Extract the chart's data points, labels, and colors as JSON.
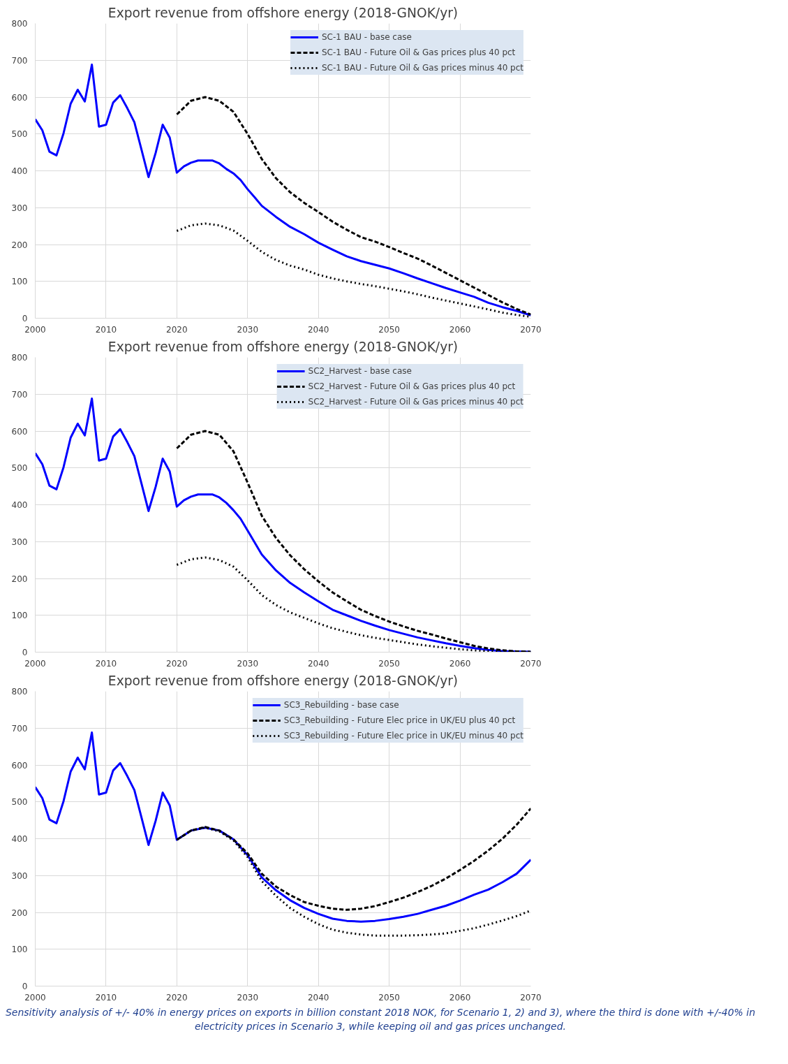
{
  "chart_data": [
    {
      "type": "line",
      "title": "Export revenue from offshore energy (2018-GNOK/yr)",
      "xlim": [
        2000,
        2070
      ],
      "xticks": [
        2000,
        2010,
        2020,
        2030,
        2040,
        2050,
        2060,
        2070
      ],
      "ylim": [
        0,
        800
      ],
      "yticks": [
        0,
        100,
        200,
        300,
        400,
        500,
        600,
        700,
        800
      ],
      "grid": true,
      "legend": "top right",
      "marker": "none",
      "series": [
        {
          "name": "SC-1 BAU - base case",
          "color": "#0000ff",
          "line_style": "solid",
          "x": [
            2000,
            2001,
            2002,
            2003,
            2004,
            2005,
            2006,
            2007,
            2008,
            2009,
            2010,
            2011,
            2012,
            2013,
            2014,
            2015,
            2016,
            2017,
            2018,
            2019,
            2020,
            2021,
            2022,
            2023,
            2024,
            2025,
            2026,
            2027,
            2028,
            2029,
            2030,
            2031,
            2032,
            2034,
            2036,
            2038,
            2040,
            2042,
            2044,
            2046,
            2048,
            2050,
            2052,
            2054,
            2056,
            2058,
            2060,
            2062,
            2064,
            2066,
            2068,
            2070
          ],
          "values": [
            540,
            510,
            452,
            442,
            502,
            582,
            620,
            588,
            688,
            520,
            525,
            585,
            605,
            570,
            532,
            458,
            383,
            448,
            525,
            490,
            395,
            412,
            422,
            428,
            428,
            428,
            420,
            405,
            393,
            375,
            350,
            328,
            305,
            275,
            248,
            228,
            205,
            186,
            168,
            155,
            145,
            135,
            122,
            108,
            95,
            82,
            70,
            58,
            42,
            30,
            20,
            8
          ]
        },
        {
          "name": "SC-1 BAU - Future Oil & Gas prices plus 40 pct",
          "color": "#000000",
          "line_style": "dashed",
          "x": [
            2020,
            2022,
            2024,
            2026,
            2028,
            2030,
            2032,
            2034,
            2036,
            2038,
            2040,
            2042,
            2044,
            2046,
            2048,
            2050,
            2052,
            2054,
            2056,
            2058,
            2060,
            2062,
            2064,
            2066,
            2068,
            2070
          ],
          "values": [
            553,
            590,
            600,
            590,
            560,
            500,
            432,
            380,
            342,
            313,
            288,
            262,
            240,
            220,
            208,
            193,
            177,
            162,
            143,
            123,
            103,
            83,
            63,
            43,
            25,
            10
          ]
        },
        {
          "name": "SC-1 BAU - Future Oil & Gas prices minus 40 pct",
          "color": "#000000",
          "line_style": "dotted",
          "x": [
            2020,
            2022,
            2024,
            2026,
            2028,
            2030,
            2032,
            2034,
            2036,
            2038,
            2040,
            2042,
            2044,
            2046,
            2048,
            2050,
            2052,
            2054,
            2056,
            2058,
            2060,
            2062,
            2064,
            2066,
            2068,
            2070
          ],
          "values": [
            237,
            252,
            257,
            252,
            238,
            210,
            180,
            158,
            143,
            132,
            118,
            108,
            100,
            93,
            87,
            80,
            73,
            65,
            56,
            48,
            40,
            32,
            24,
            15,
            9,
            4
          ]
        }
      ]
    },
    {
      "type": "line",
      "title": "Export revenue from offshore energy (2018-GNOK/yr)",
      "xlim": [
        2000,
        2070
      ],
      "xticks": [
        2000,
        2010,
        2020,
        2030,
        2040,
        2050,
        2060,
        2070
      ],
      "ylim": [
        0,
        800
      ],
      "yticks": [
        0,
        100,
        200,
        300,
        400,
        500,
        600,
        700,
        800
      ],
      "grid": true,
      "legend": "top right",
      "marker": "none",
      "series": [
        {
          "name": "SC2_Harvest - base case",
          "color": "#0000ff",
          "line_style": "solid",
          "x": [
            2000,
            2001,
            2002,
            2003,
            2004,
            2005,
            2006,
            2007,
            2008,
            2009,
            2010,
            2011,
            2012,
            2013,
            2014,
            2015,
            2016,
            2017,
            2018,
            2019,
            2020,
            2021,
            2022,
            2023,
            2024,
            2025,
            2026,
            2027,
            2028,
            2029,
            2030,
            2032,
            2034,
            2036,
            2038,
            2040,
            2042,
            2044,
            2046,
            2048,
            2050,
            2052,
            2054,
            2056,
            2058,
            2060,
            2062,
            2064,
            2066,
            2068,
            2070
          ],
          "values": [
            540,
            510,
            452,
            442,
            502,
            582,
            620,
            588,
            688,
            520,
            525,
            585,
            605,
            570,
            532,
            458,
            383,
            448,
            525,
            490,
            395,
            412,
            422,
            428,
            428,
            428,
            420,
            405,
            385,
            362,
            330,
            265,
            222,
            188,
            162,
            138,
            115,
            100,
            85,
            72,
            60,
            50,
            40,
            32,
            24,
            17,
            11,
            6,
            3,
            2,
            1
          ]
        },
        {
          "name": "SC2_Harvest - Future Oil & Gas prices plus 40 pct",
          "color": "#000000",
          "line_style": "dashed",
          "x": [
            2020,
            2022,
            2024,
            2026,
            2028,
            2030,
            2032,
            2034,
            2036,
            2038,
            2040,
            2042,
            2044,
            2046,
            2048,
            2050,
            2052,
            2054,
            2056,
            2058,
            2060,
            2062,
            2064,
            2066,
            2068,
            2070
          ],
          "values": [
            553,
            590,
            600,
            590,
            545,
            460,
            370,
            310,
            263,
            225,
            192,
            162,
            138,
            115,
            98,
            83,
            70,
            58,
            48,
            37,
            27,
            17,
            10,
            5,
            2,
            1
          ]
        },
        {
          "name": "SC2_Harvest - Future Oil & Gas prices minus 40 pct",
          "color": "#000000",
          "line_style": "dotted",
          "x": [
            2020,
            2022,
            2024,
            2026,
            2028,
            2030,
            2032,
            2034,
            2036,
            2038,
            2040,
            2042,
            2044,
            2046,
            2048,
            2050,
            2052,
            2054,
            2056,
            2058,
            2060,
            2062,
            2064,
            2066,
            2068,
            2070
          ],
          "values": [
            237,
            252,
            257,
            250,
            232,
            195,
            155,
            128,
            108,
            93,
            78,
            65,
            55,
            46,
            39,
            33,
            27,
            21,
            16,
            12,
            8,
            5,
            3,
            1,
            1,
            0
          ]
        }
      ]
    },
    {
      "type": "line",
      "title": "Export revenue from offshore energy (2018-GNOK/yr)",
      "xlim": [
        2000,
        2070
      ],
      "xticks": [
        2000,
        2010,
        2020,
        2030,
        2040,
        2050,
        2060,
        2070
      ],
      "ylim": [
        0,
        800
      ],
      "yticks": [
        0,
        100,
        200,
        300,
        400,
        500,
        600,
        700,
        800
      ],
      "grid": true,
      "legend": "top right",
      "marker": "none",
      "annotations": [
        "Sensitivity analysis of +/- 40% in energy prices on exports in billion constant 2018 NOK, for Scenario 1, 2) and 3), where the third is done with +/-40% in electricity prices in Scenario 3, while keeping oil and gas prices unchanged."
      ],
      "series": [
        {
          "name": "SC3_Rebuilding - base case",
          "color": "#0000ff",
          "line_style": "solid",
          "x": [
            2000,
            2001,
            2002,
            2003,
            2004,
            2005,
            2006,
            2007,
            2008,
            2009,
            2010,
            2011,
            2012,
            2013,
            2014,
            2015,
            2016,
            2017,
            2018,
            2019,
            2020,
            2022,
            2024,
            2026,
            2028,
            2030,
            2032,
            2034,
            2036,
            2038,
            2040,
            2042,
            2044,
            2046,
            2048,
            2050,
            2052,
            2054,
            2056,
            2058,
            2060,
            2062,
            2064,
            2066,
            2068,
            2070
          ],
          "values": [
            540,
            510,
            452,
            442,
            502,
            582,
            620,
            588,
            688,
            520,
            525,
            585,
            605,
            570,
            532,
            458,
            383,
            448,
            525,
            490,
            397,
            422,
            430,
            422,
            398,
            355,
            295,
            260,
            233,
            212,
            196,
            183,
            177,
            175,
            177,
            182,
            188,
            196,
            207,
            218,
            232,
            248,
            262,
            282,
            305,
            343
          ]
        },
        {
          "name": "SC3_Rebuilding - Future Elec price in UK/EU plus 40 pct",
          "color": "#000000",
          "line_style": "dashed",
          "x": [
            2020,
            2022,
            2024,
            2026,
            2028,
            2030,
            2032,
            2034,
            2036,
            2038,
            2040,
            2042,
            2044,
            2046,
            2048,
            2050,
            2052,
            2054,
            2056,
            2058,
            2060,
            2062,
            2064,
            2066,
            2068,
            2070
          ],
          "values": [
            397,
            422,
            432,
            422,
            398,
            360,
            305,
            270,
            247,
            228,
            218,
            210,
            207,
            210,
            217,
            228,
            240,
            255,
            272,
            292,
            315,
            340,
            368,
            400,
            438,
            482
          ]
        },
        {
          "name": "SC3_Rebuilding - Future Elec price in UK/EU minus 40 pct",
          "color": "#000000",
          "line_style": "dotted",
          "x": [
            2020,
            2022,
            2024,
            2026,
            2028,
            2030,
            2032,
            2034,
            2036,
            2038,
            2040,
            2042,
            2044,
            2046,
            2048,
            2050,
            2052,
            2054,
            2056,
            2058,
            2060,
            2062,
            2064,
            2066,
            2068,
            2070
          ],
          "values": [
            397,
            422,
            430,
            420,
            395,
            350,
            285,
            245,
            212,
            188,
            168,
            153,
            145,
            140,
            137,
            137,
            137,
            138,
            140,
            143,
            150,
            157,
            167,
            178,
            190,
            205
          ]
        }
      ]
    }
  ]
}
